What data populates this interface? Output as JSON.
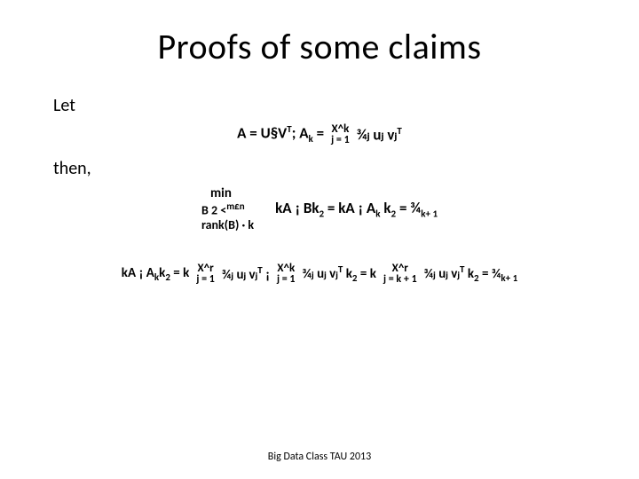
{
  "title": "Proofs of some claims",
  "let": "Let",
  "then": "then,",
  "eq1": {
    "lhs": "A = U§V",
    "lhs_sup": "T",
    "sep": "; A",
    "sep_sub": "k",
    "eq": " = ",
    "sum_top": "X^k",
    "sum_cap": "X",
    "sum_bot": "j = 1",
    "term": "¾ⱼ uⱼ vⱼ",
    "term_sup": "T"
  },
  "eq2": {
    "min_top": "min",
    "min_line2": "B 2 <",
    "min_line2_exp": "m£n",
    "min_line3": "rank(B) ·  k",
    "body1": "kA ¡  Bk",
    "body1_sub": "2",
    "body2": " = kA ¡  A",
    "body2_sub": "k",
    "body3": " k",
    "body3_sub": "2",
    "body4": " = ¾",
    "body4_sub": "k+ 1"
  },
  "eq3": {
    "p1": "kA ¡  A",
    "p1_sub": "k",
    "p2": "k",
    "p2_sub": "2",
    "eq": " = k",
    "sumA_top": "X^r",
    "sumA_bot": "j = 1",
    "termA": "¾ⱼ uⱼ vⱼ",
    "termA_sup": "T",
    "minus": " ¡ ",
    "sumB_top": "X^k",
    "sumB_bot": "j = 1",
    "termB": "¾ⱼ uⱼ vⱼ",
    "termB_sup": "T",
    "k2a": " k",
    "k2a_sub": "2",
    "eq2": " = k",
    "sumC_top": "X^r",
    "sumC_bot": "j = k + 1",
    "termC": "¾ⱼ uⱼ vⱼ",
    "termC_sup": "T",
    "k2b": " k",
    "k2b_sub": "2",
    "final": " = ¾",
    "final_sub": "k+ 1"
  },
  "footer": "Big Data Class TAU 2013",
  "colors": {
    "text": "#000000",
    "bg": "#ffffff"
  },
  "fontsizes": {
    "title": 40,
    "body": 20,
    "eq": 17,
    "footer": 12
  }
}
